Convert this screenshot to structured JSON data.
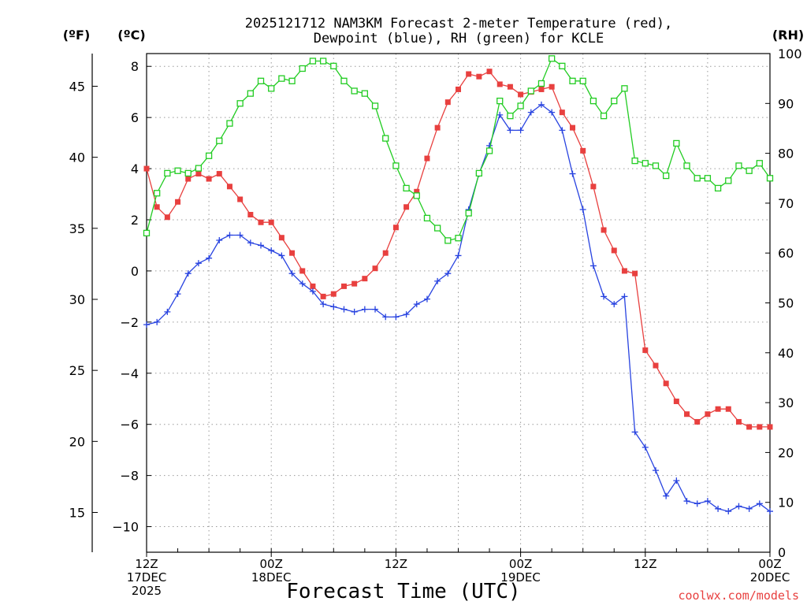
{
  "title_line1": "2025121712 NAM3KM Forecast 2-meter Temperature (red),",
  "title_line2": "Dewpoint (blue), RH (green) for KCLE",
  "credit": "coolwx.com/models",
  "colors": {
    "temperature": "#e8403f",
    "dewpoint": "#2843e0",
    "rh": "#22cc22",
    "grid": "#9a9a9a"
  },
  "chart_data": {
    "type": "line",
    "title": "2025121712 NAM3KM Forecast 2-meter Temperature (red), Dewpoint (blue), RH (green) for KCLE",
    "xlabel": "Forecast Time (UTC)",
    "x_hours": [
      0,
      1,
      2,
      3,
      4,
      5,
      6,
      7,
      8,
      9,
      10,
      11,
      12,
      13,
      14,
      15,
      16,
      17,
      18,
      19,
      20,
      21,
      22,
      23,
      24,
      25,
      26,
      27,
      28,
      29,
      30,
      31,
      32,
      33,
      34,
      35,
      36,
      37,
      38,
      39,
      40,
      41,
      42,
      43,
      44,
      45,
      46,
      47,
      48,
      49,
      50,
      51,
      52,
      53,
      54,
      55,
      56,
      57,
      58,
      59,
      60
    ],
    "xlim_hours": [
      0,
      60
    ],
    "x_ticks": [
      {
        "hour": 0,
        "lines": [
          "12Z",
          "17DEC",
          "2025"
        ]
      },
      {
        "hour": 12,
        "lines": [
          "00Z",
          "18DEC"
        ]
      },
      {
        "hour": 24,
        "lines": [
          "12Z"
        ]
      },
      {
        "hour": 36,
        "lines": [
          "00Z",
          "19DEC"
        ]
      },
      {
        "hour": 48,
        "lines": [
          "12Z"
        ]
      },
      {
        "hour": 60,
        "lines": [
          "00Z",
          "20DEC"
        ]
      }
    ],
    "y_left_c": {
      "label": "(ºC)",
      "ylim": [
        -11.0,
        8.5
      ],
      "ticks": [
        -10,
        -8,
        -6,
        -4,
        -2,
        0,
        2,
        4,
        6,
        8
      ]
    },
    "y_left_f": {
      "label": "(ºF)",
      "ticks": [
        15,
        20,
        25,
        30,
        35,
        40,
        45
      ]
    },
    "y_right_rh": {
      "label": "(RH)",
      "ylim": [
        0,
        100
      ],
      "ticks": [
        0,
        10,
        20,
        30,
        40,
        50,
        60,
        70,
        80,
        90,
        100
      ]
    },
    "series": [
      {
        "name": "2-meter Temperature",
        "axis": "celsius",
        "color": "#e8403f",
        "marker": "filled-square",
        "values": [
          4.0,
          2.5,
          2.1,
          2.7,
          3.6,
          3.8,
          3.6,
          3.8,
          3.3,
          2.8,
          2.2,
          1.9,
          1.9,
          1.3,
          0.7,
          0.0,
          -0.6,
          -1.0,
          -0.9,
          -0.6,
          -0.5,
          -0.3,
          0.1,
          0.7,
          1.7,
          2.5,
          3.1,
          4.4,
          5.6,
          6.6,
          7.1,
          7.7,
          7.6,
          7.8,
          7.3,
          7.2,
          6.9,
          7.0,
          7.1,
          7.2,
          6.2,
          5.6,
          4.7,
          3.3,
          1.6,
          0.8,
          0.0,
          -0.1,
          -3.1,
          -3.7,
          -4.4,
          -5.1,
          -5.6,
          -5.9,
          -5.6,
          -5.4,
          -5.4,
          -5.9,
          -6.1,
          -6.1,
          -6.1
        ]
      },
      {
        "name": "Dewpoint",
        "axis": "celsius",
        "color": "#2843e0",
        "marker": "plus",
        "values": [
          -2.1,
          -2.0,
          -1.6,
          -0.9,
          -0.1,
          0.3,
          0.5,
          1.2,
          1.4,
          1.4,
          1.1,
          1.0,
          0.8,
          0.6,
          -0.1,
          -0.5,
          -0.8,
          -1.3,
          -1.4,
          -1.5,
          -1.6,
          -1.5,
          -1.5,
          -1.8,
          -1.8,
          -1.7,
          -1.3,
          -1.1,
          -0.4,
          -0.1,
          0.6,
          2.4,
          3.8,
          4.9,
          6.1,
          5.5,
          5.5,
          6.2,
          6.5,
          6.2,
          5.5,
          3.8,
          2.4,
          0.2,
          -1.0,
          -1.3,
          -1.0,
          -6.3,
          -6.9,
          -7.8,
          -8.8,
          -8.2,
          -9.0,
          -9.1,
          -9.0,
          -9.3,
          -9.4,
          -9.2,
          -9.3,
          -9.1,
          -9.4
        ]
      },
      {
        "name": "RH",
        "axis": "rh",
        "color": "#22cc22",
        "marker": "open-square",
        "values": [
          64,
          72,
          76,
          76.5,
          76,
          77,
          79.5,
          82.5,
          86,
          90,
          92,
          94.5,
          93,
          95,
          94.5,
          97,
          98.5,
          98.5,
          97.5,
          94.5,
          92.5,
          92,
          89.5,
          83,
          77.5,
          73,
          71.5,
          67,
          65,
          62.5,
          63,
          68,
          76,
          80.5,
          90.5,
          87.5,
          89.5,
          92.5,
          94,
          99,
          97.5,
          94.5,
          94.5,
          90.5,
          87.5,
          90.5,
          93,
          78.5,
          78,
          77.5,
          75.5,
          82,
          77.5,
          75,
          75,
          73,
          74.5,
          77.5,
          76.5,
          78,
          75
        ]
      }
    ]
  }
}
